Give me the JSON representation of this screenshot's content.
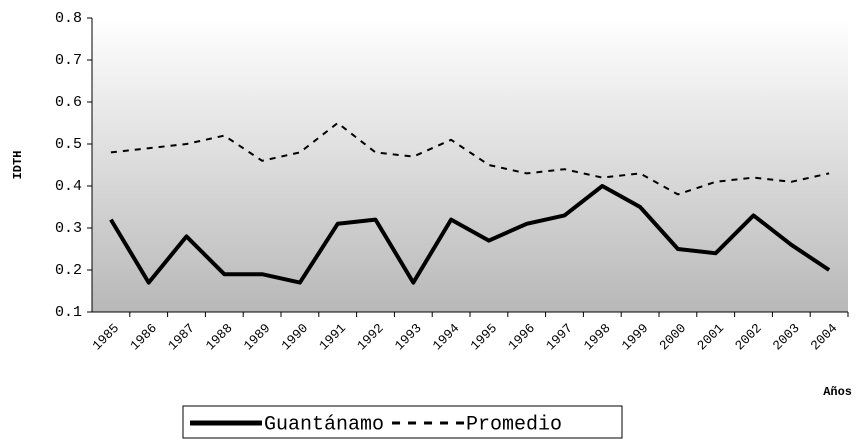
{
  "chart_data": {
    "type": "line",
    "y_label": "IDTH",
    "x_label": "Años",
    "categories": [
      "1985",
      "1986",
      "1987",
      "1988",
      "1989",
      "1990",
      "1991",
      "1992",
      "1993",
      "1994",
      "1995",
      "1996",
      "1997",
      "1998",
      "1999",
      "2000",
      "2001",
      "2002",
      "2003",
      "2004"
    ],
    "series": [
      {
        "name": "Guantánamo",
        "color": "#000000",
        "style": "solid",
        "values": [
          0.32,
          0.17,
          0.28,
          0.19,
          0.19,
          0.17,
          0.31,
          0.32,
          0.17,
          0.32,
          0.27,
          0.31,
          0.33,
          0.4,
          0.35,
          0.25,
          0.24,
          0.33,
          0.26,
          0.2
        ]
      },
      {
        "name": "Promedio",
        "color": "#000000",
        "style": "dashed",
        "values": [
          0.48,
          0.49,
          0.5,
          0.52,
          0.46,
          0.48,
          0.55,
          0.48,
          0.47,
          0.51,
          0.45,
          0.43,
          0.44,
          0.42,
          0.43,
          0.38,
          0.41,
          0.42,
          0.41,
          0.43
        ]
      }
    ],
    "ylim": [
      0.1,
      0.8
    ],
    "yticks": [
      0.1,
      0.2,
      0.3,
      0.4,
      0.5,
      0.6,
      0.7,
      0.8
    ]
  }
}
